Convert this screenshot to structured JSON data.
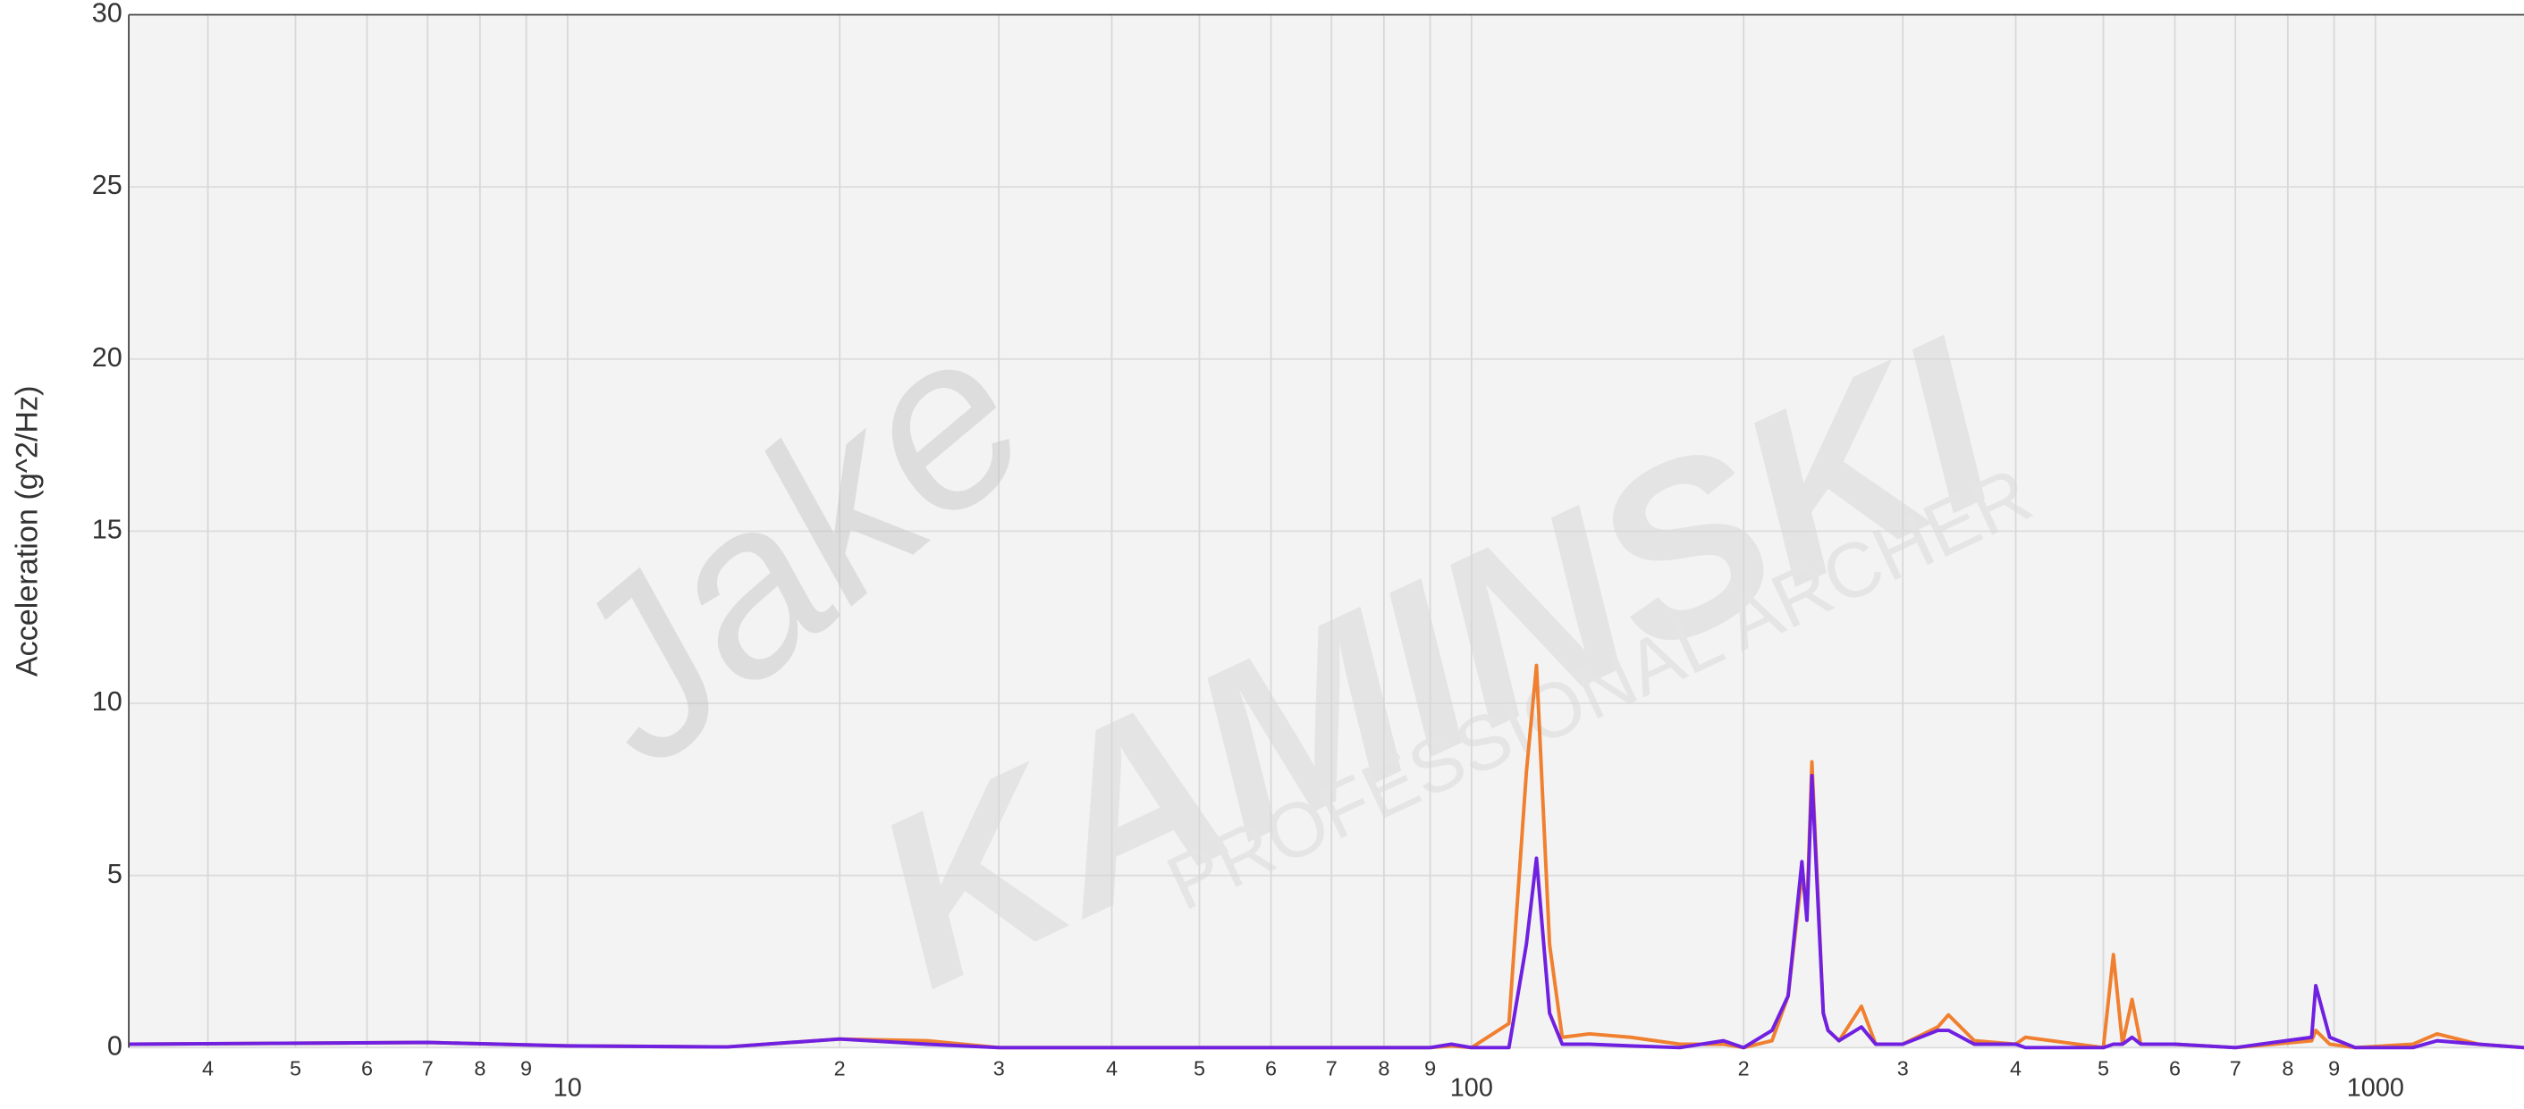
{
  "chart_data": {
    "type": "line",
    "y_label": "Acceleration (g^2/Hz)",
    "watermark": [
      "Jake",
      "KAMINSKI",
      "PROFESSIONAL ARCHER"
    ],
    "x_scale": "log",
    "grid": true,
    "xlim": [
      3.27,
      1460
    ],
    "ylim": [
      0,
      30
    ],
    "yticks": [
      0,
      5,
      10,
      15,
      20,
      25,
      30
    ],
    "xticks": [
      {
        "value": 4,
        "label": "4"
      },
      {
        "value": 5,
        "label": "5"
      },
      {
        "value": 6,
        "label": "6"
      },
      {
        "value": 7,
        "label": "7"
      },
      {
        "value": 8,
        "label": "8"
      },
      {
        "value": 9,
        "label": "9"
      },
      10,
      {
        "value": 20,
        "label": "2"
      },
      {
        "value": 30,
        "label": "3"
      },
      {
        "value": 40,
        "label": "4"
      },
      {
        "value": 50,
        "label": "5"
      },
      {
        "value": 60,
        "label": "6"
      },
      {
        "value": 70,
        "label": "7"
      },
      {
        "value": 80,
        "label": "8"
      },
      {
        "value": 90,
        "label": "9"
      },
      100,
      {
        "value": 200,
        "label": "2"
      },
      {
        "value": 300,
        "label": "3"
      },
      {
        "value": 400,
        "label": "4"
      },
      {
        "value": 500,
        "label": "5"
      },
      {
        "value": 600,
        "label": "6"
      },
      {
        "value": 700,
        "label": "7"
      },
      {
        "value": 800,
        "label": "8"
      },
      {
        "value": 900,
        "label": "9"
      },
      1000
    ],
    "x": [
      3.27,
      7,
      10,
      15,
      20,
      25,
      30,
      90,
      95,
      100,
      110,
      115,
      118,
      122,
      126,
      135,
      150,
      170,
      190,
      200,
      215,
      224,
      232,
      235,
      238,
      245,
      248,
      255,
      270,
      280,
      300,
      328,
      337,
      360,
      400,
      410,
      500,
      513,
      525,
      538,
      550,
      600,
      700,
      850,
      859,
      890,
      950,
      1100,
      1170,
      1300,
      1460
    ],
    "series": [
      {
        "color": "#f08030",
        "values": [
          0.1,
          0.15,
          0.05,
          0.02,
          0.25,
          0.2,
          0,
          0,
          0.05,
          0,
          0.7,
          8,
          11.1,
          3,
          0.3,
          0.4,
          0.3,
          0.1,
          0.1,
          0,
          0.2,
          1.5,
          5,
          4,
          8.3,
          1.0,
          0.5,
          0.2,
          1.2,
          0.1,
          0.1,
          0.6,
          0.95,
          0.2,
          0.1,
          0.3,
          0,
          2.7,
          0.1,
          1.4,
          0.1,
          0.1,
          0,
          0.2,
          0.5,
          0.1,
          0,
          0.1,
          0.4,
          0.1,
          0
        ]
      },
      {
        "color": "#7020e0",
        "values": [
          0.1,
          0.15,
          0.05,
          0.02,
          0.25,
          0.1,
          0,
          0,
          0.1,
          0,
          0,
          3,
          5.5,
          1,
          0.1,
          0.1,
          0.05,
          0,
          0.2,
          0,
          0.5,
          1.5,
          5.4,
          3.7,
          7.9,
          1.0,
          0.5,
          0.2,
          0.6,
          0.1,
          0.1,
          0.5,
          0.5,
          0.1,
          0.1,
          0,
          0,
          0.1,
          0.1,
          0.3,
          0.1,
          0.1,
          0,
          0.3,
          1.8,
          0.3,
          0,
          0,
          0.2,
          0.1,
          0
        ]
      }
    ]
  }
}
